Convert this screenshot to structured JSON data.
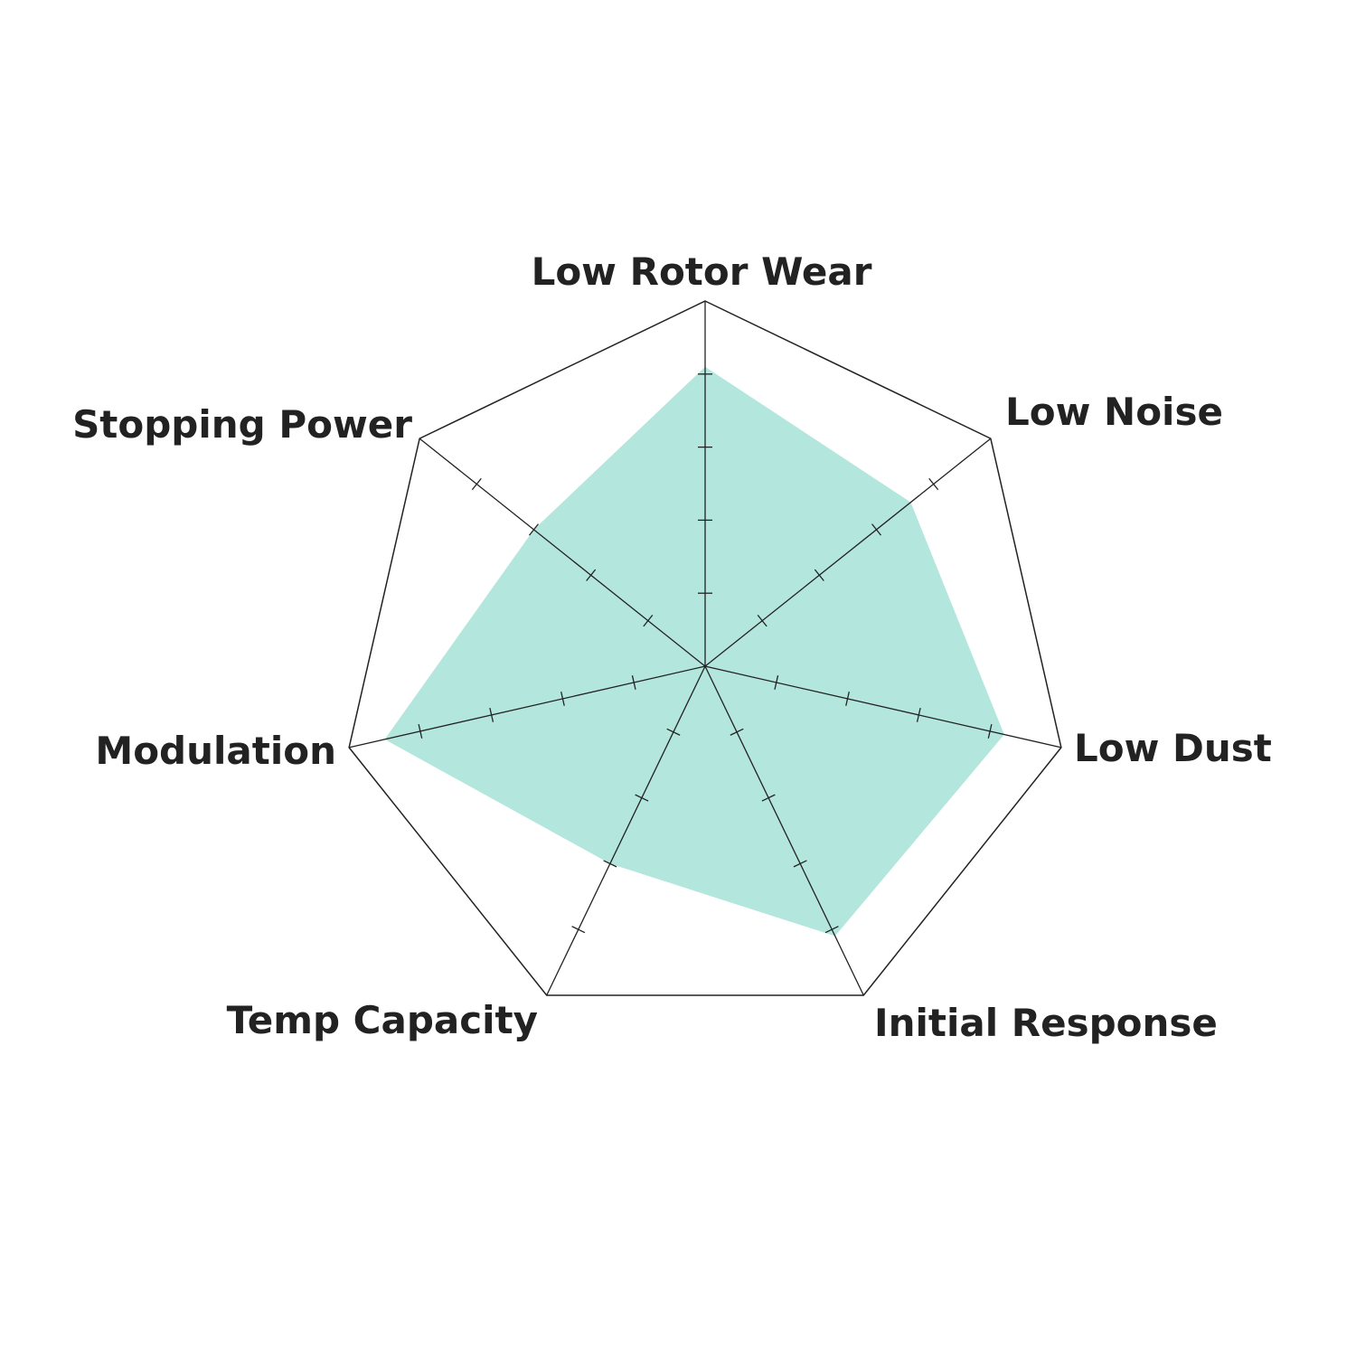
{
  "chart_data": {
    "type": "radar",
    "axes": [
      "Low Rotor Wear",
      "Low Noise",
      "Low Dust",
      "Initial Response",
      "Temp Capacity",
      "Modulation",
      "Stopping Power"
    ],
    "values": [
      4.1,
      3.6,
      4.2,
      4.1,
      3.0,
      4.5,
      3.0
    ],
    "range": [
      0,
      5
    ],
    "tick_count": 5,
    "grid": "outer polygon and spokes with tick marks",
    "colors": {
      "fill": "#b3e6dd",
      "lines": "#222222"
    }
  }
}
